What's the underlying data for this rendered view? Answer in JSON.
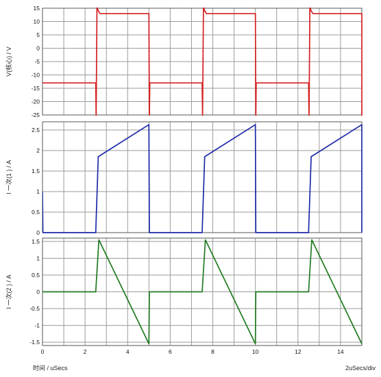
{
  "chart_data": [
    {
      "type": "line",
      "title": "",
      "ylabel": "V(核心) / V",
      "ylim": [
        -25,
        15
      ],
      "yticks": [
        15,
        10,
        5,
        0,
        -5,
        -10,
        -15,
        -20,
        -25
      ],
      "xlim": [
        0,
        15
      ],
      "grid": true,
      "color": "#d42020",
      "series": [
        {
          "values": [
            [
              0,
              -13
            ],
            [
              2.5,
              -13
            ],
            [
              2.52,
              -26
            ],
            [
              2.56,
              15.5
            ],
            [
              2.62,
              14
            ],
            [
              2.7,
              13
            ],
            [
              5.0,
              13
            ],
            [
              5.02,
              -26
            ],
            [
              5.04,
              -13
            ],
            [
              7.5,
              -13
            ],
            [
              7.52,
              -26
            ],
            [
              7.56,
              15.5
            ],
            [
              7.62,
              14
            ],
            [
              7.7,
              13
            ],
            [
              10.0,
              13
            ],
            [
              10.02,
              -26
            ],
            [
              10.04,
              -13
            ],
            [
              12.5,
              -13
            ],
            [
              12.52,
              -26
            ],
            [
              12.56,
              15.5
            ],
            [
              12.62,
              14
            ],
            [
              12.7,
              13
            ],
            [
              15.0,
              13
            ],
            [
              15.0,
              -26
            ]
          ]
        }
      ]
    },
    {
      "type": "line",
      "title": "",
      "ylabel": "I  一次(1 ) / A",
      "ylim": [
        0,
        2.7
      ],
      "yticks": [
        2.5,
        2,
        1.5,
        1,
        0.5,
        0
      ],
      "xlim": [
        0,
        15
      ],
      "grid": true,
      "color": "#1c2aa8",
      "series": [
        {
          "values": [
            [
              0,
              1.0
            ],
            [
              0.02,
              0
            ],
            [
              2.5,
              0
            ],
            [
              2.62,
              1.85
            ],
            [
              5.0,
              2.63
            ],
            [
              5.02,
              0
            ],
            [
              7.5,
              0
            ],
            [
              7.62,
              1.85
            ],
            [
              10.0,
              2.63
            ],
            [
              10.02,
              0
            ],
            [
              12.5,
              0
            ],
            [
              12.62,
              1.85
            ],
            [
              15.0,
              2.63
            ],
            [
              15.0,
              0
            ]
          ]
        }
      ]
    },
    {
      "type": "line",
      "title": "",
      "ylabel": "I  一次(2 ) / A",
      "ylim": [
        -1.6,
        1.6
      ],
      "yticks": [
        1.5,
        1,
        0.5,
        0,
        -0.5,
        -1,
        -1.5
      ],
      "xlim": [
        0,
        15
      ],
      "xticks": [
        0,
        2,
        4,
        6,
        8,
        10,
        12,
        14
      ],
      "grid": true,
      "color": "#1f7a1f",
      "series": [
        {
          "values": [
            [
              0,
              0
            ],
            [
              2.5,
              0
            ],
            [
              2.65,
              1.55
            ],
            [
              5.0,
              -1.55
            ],
            [
              5.02,
              0
            ],
            [
              7.5,
              0
            ],
            [
              7.65,
              1.55
            ],
            [
              10.0,
              -1.55
            ],
            [
              10.02,
              0
            ],
            [
              12.5,
              0
            ],
            [
              12.65,
              1.55
            ],
            [
              15.0,
              -1.55
            ]
          ]
        }
      ]
    }
  ],
  "footer": {
    "xlabel": "时间 / uSecs",
    "timebase": "2uSecs/div"
  }
}
